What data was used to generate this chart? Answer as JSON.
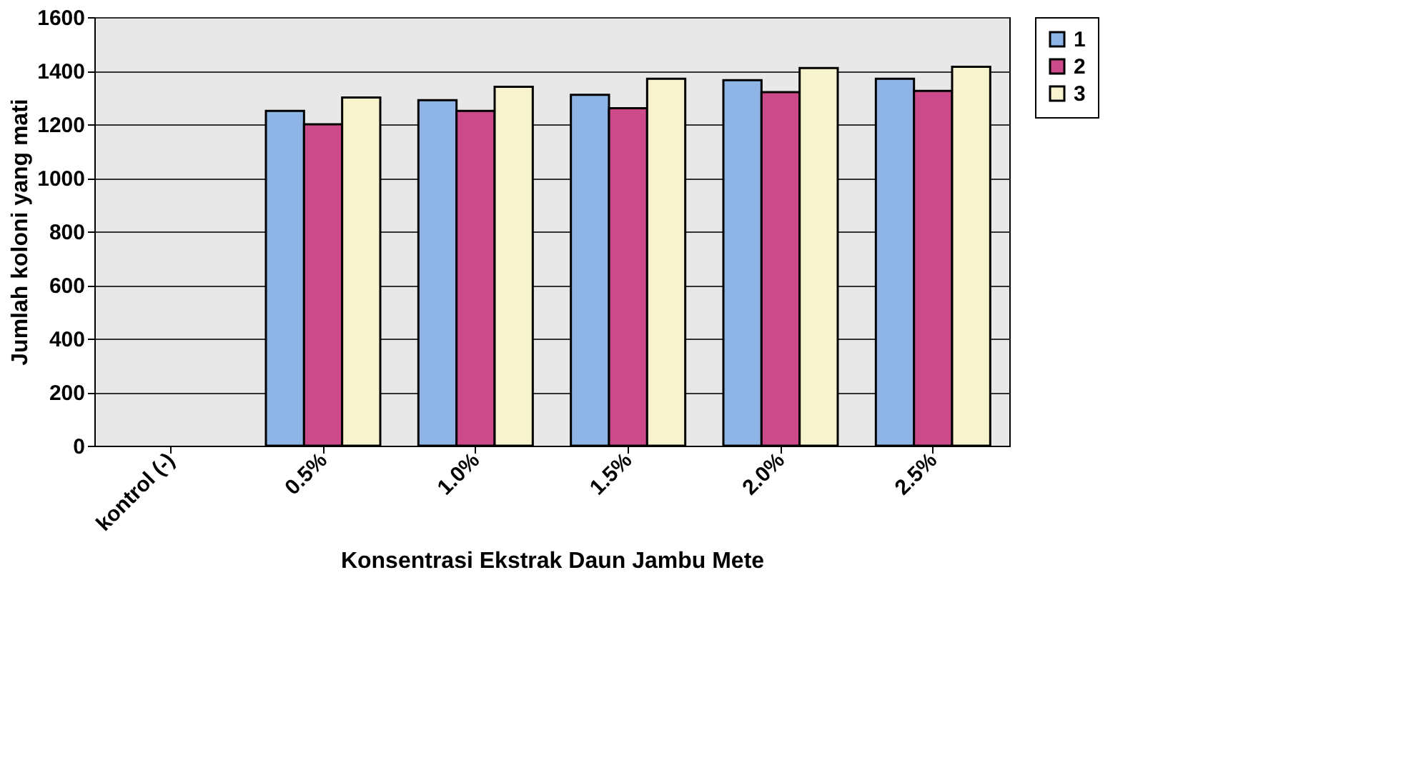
{
  "chart_data": {
    "type": "bar",
    "xlabel": "Konsentrasi Ekstrak Daun Jambu Mete",
    "ylabel": "Jumlah koloni yang mati",
    "categories": [
      "kontrol (-)",
      "0.5%",
      "1.0%",
      "1.5%",
      "2.0%",
      "2.5%"
    ],
    "series": [
      {
        "name": "1",
        "color": "#8fb4e6",
        "values": [
          null,
          1250,
          1290,
          1310,
          1365,
          1370
        ]
      },
      {
        "name": "2",
        "color": "#cc4a8a",
        "values": [
          null,
          1200,
          1250,
          1260,
          1320,
          1325
        ]
      },
      {
        "name": "3",
        "color": "#f7f3cc",
        "values": [
          null,
          1300,
          1340,
          1370,
          1410,
          1415
        ]
      }
    ],
    "ylim": [
      0,
      1600
    ],
    "yticks": [
      0,
      200,
      400,
      600,
      800,
      1000,
      1200,
      1400,
      1600
    ],
    "grid": "y",
    "legend": "right"
  }
}
